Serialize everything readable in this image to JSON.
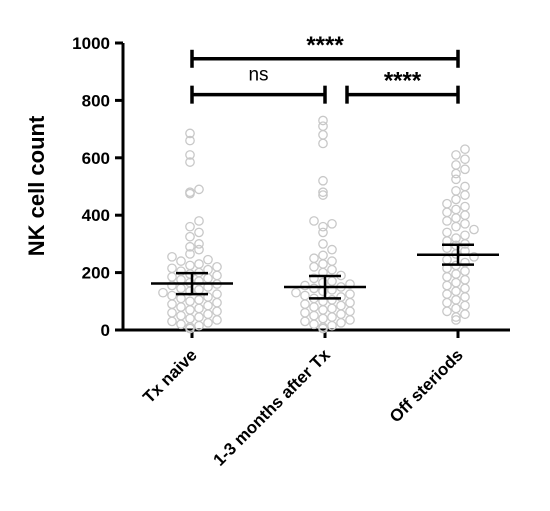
{
  "chart_data": {
    "type": "scatter",
    "ylabel": "NK cell count",
    "ylim": [
      0,
      1000
    ],
    "yticks": [
      "0",
      "200",
      "400",
      "600",
      "800",
      "1000"
    ],
    "categories": [
      "Tx naive",
      "1-3 months after Tx",
      "Off steriods"
    ],
    "series": [
      {
        "category": "Tx naive",
        "mean": 162,
        "ci_low": 125,
        "ci_high": 198,
        "values": [
          685,
          660,
          610,
          585,
          490,
          480,
          475,
          380,
          360,
          340,
          325,
          300,
          290,
          280,
          265,
          255,
          245,
          240,
          230,
          225,
          220,
          215,
          210,
          205,
          200,
          195,
          190,
          185,
          180,
          175,
          170,
          165,
          160,
          155,
          150,
          145,
          140,
          135,
          130,
          125,
          120,
          115,
          110,
          105,
          100,
          95,
          90,
          85,
          80,
          75,
          70,
          65,
          60,
          55,
          50,
          45,
          40,
          35,
          30,
          25,
          20,
          15,
          10,
          5
        ]
      },
      {
        "category": "1-3 months after Tx",
        "mean": 150,
        "ci_low": 110,
        "ci_high": 188,
        "values": [
          730,
          710,
          680,
          650,
          520,
          480,
          470,
          380,
          370,
          360,
          340,
          300,
          280,
          260,
          250,
          240,
          230,
          220,
          210,
          200,
          190,
          180,
          170,
          165,
          160,
          155,
          150,
          145,
          140,
          135,
          130,
          125,
          120,
          115,
          110,
          105,
          100,
          95,
          90,
          85,
          80,
          75,
          70,
          65,
          60,
          55,
          50,
          45,
          40,
          35,
          30,
          25,
          20,
          15,
          10,
          5
        ]
      },
      {
        "category": "Off steriods",
        "mean": 262,
        "ci_low": 228,
        "ci_high": 297,
        "values": [
          630,
          610,
          595,
          575,
          560,
          545,
          525,
          500,
          485,
          470,
          455,
          440,
          430,
          420,
          410,
          400,
          390,
          380,
          370,
          360,
          350,
          340,
          330,
          320,
          310,
          300,
          295,
          285,
          275,
          265,
          255,
          245,
          235,
          225,
          215,
          205,
          195,
          185,
          175,
          165,
          155,
          145,
          135,
          125,
          115,
          105,
          95,
          85,
          75,
          65,
          55,
          45,
          35
        ]
      }
    ],
    "comparisons": [
      {
        "from": "Tx naive",
        "to": "Off steriods",
        "label": "****",
        "y": 945
      },
      {
        "from": "Tx naive",
        "to": "1-3 months after Tx",
        "label": "ns",
        "y": 820
      },
      {
        "from": "1-3 months after Tx",
        "to": "Off steriods",
        "label": "****",
        "y": 820
      }
    ],
    "point_color": "#c8c8c8",
    "line_color": "#000000"
  }
}
